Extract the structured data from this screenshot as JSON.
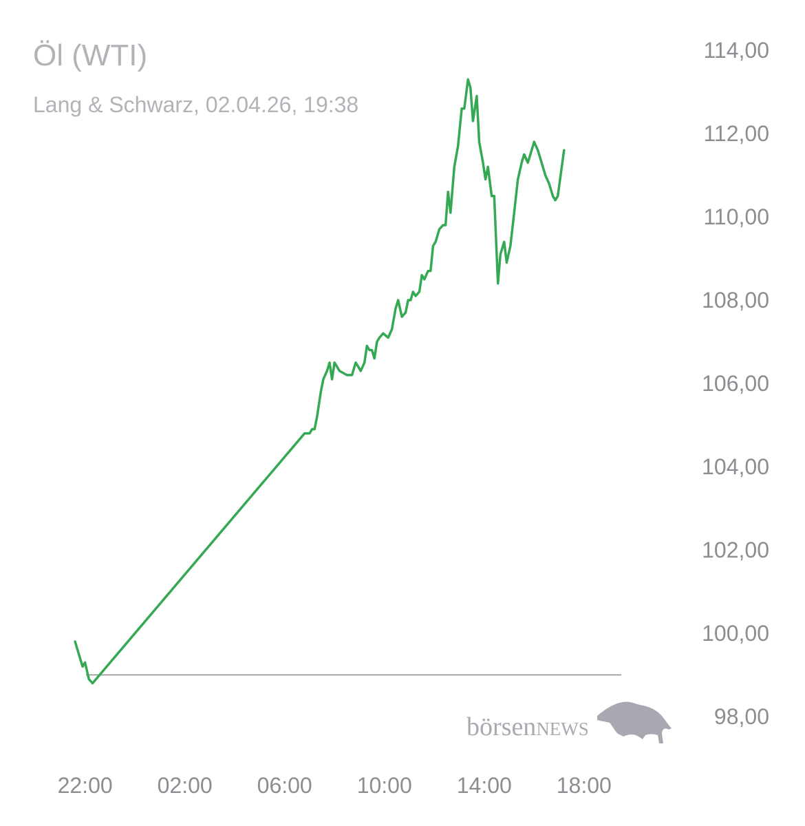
{
  "header": {
    "title": "Öl (WTI)",
    "subtitle": "Lang & Schwarz, 02.04.26, 19:38"
  },
  "logo": {
    "text_lower": "börsen",
    "text_upper": "NEWS",
    "icon": "bull-icon"
  },
  "colors": {
    "line": "#34a853",
    "reference_line": "#8a8a8a",
    "text": "#b4b1b8",
    "tick": "#8e8c92"
  },
  "chart_data": {
    "type": "line",
    "title": "Öl (WTI)",
    "subtitle": "Lang & Schwarz, 02.04.26, 19:38",
    "ylim": [
      98,
      114
    ],
    "xlim": [
      -0.1,
      21.55
    ],
    "grid": false,
    "y_axis_side": "right",
    "yticks": [
      {
        "value": 114,
        "label": "114,00"
      },
      {
        "value": 112,
        "label": "112,00"
      },
      {
        "value": 110,
        "label": "110,00"
      },
      {
        "value": 108,
        "label": "108,00"
      },
      {
        "value": 106,
        "label": "106,00"
      },
      {
        "value": 104,
        "label": "104,00"
      },
      {
        "value": 102,
        "label": "102,00"
      },
      {
        "value": 100,
        "label": "100,00"
      },
      {
        "value": 98,
        "label": "98,00"
      }
    ],
    "xticks": [
      {
        "value": 0,
        "label": "22:00"
      },
      {
        "value": 4,
        "label": "02:00"
      },
      {
        "value": 8,
        "label": "06:00"
      },
      {
        "value": 12,
        "label": "10:00"
      },
      {
        "value": 16,
        "label": "14:00"
      },
      {
        "value": 20,
        "label": "18:00"
      }
    ],
    "reference_value": 99.0,
    "series": [
      {
        "values": [
          [
            -0.4,
            99.8
          ],
          [
            -0.1,
            99.2
          ],
          [
            0.0,
            99.3
          ],
          [
            0.15,
            98.9
          ],
          [
            0.3,
            98.8
          ],
          [
            8.8,
            104.8
          ],
          [
            9.0,
            104.8
          ],
          [
            9.1,
            104.9
          ],
          [
            9.2,
            104.9
          ],
          [
            9.3,
            105.2
          ],
          [
            9.45,
            105.8
          ],
          [
            9.55,
            106.1
          ],
          [
            9.7,
            106.3
          ],
          [
            9.8,
            106.5
          ],
          [
            9.9,
            106.1
          ],
          [
            10.0,
            106.5
          ],
          [
            10.2,
            106.3
          ],
          [
            10.5,
            106.2
          ],
          [
            10.7,
            106.2
          ],
          [
            10.85,
            106.5
          ],
          [
            10.95,
            106.4
          ],
          [
            11.05,
            106.3
          ],
          [
            11.2,
            106.5
          ],
          [
            11.3,
            106.9
          ],
          [
            11.4,
            106.8
          ],
          [
            11.5,
            106.8
          ],
          [
            11.6,
            106.6
          ],
          [
            11.7,
            107.0
          ],
          [
            11.8,
            107.1
          ],
          [
            11.95,
            107.2
          ],
          [
            12.15,
            107.1
          ],
          [
            12.3,
            107.3
          ],
          [
            12.45,
            107.8
          ],
          [
            12.55,
            108.0
          ],
          [
            12.7,
            107.6
          ],
          [
            12.85,
            107.7
          ],
          [
            12.95,
            108.0
          ],
          [
            13.05,
            108.0
          ],
          [
            13.15,
            108.2
          ],
          [
            13.25,
            108.1
          ],
          [
            13.4,
            108.2
          ],
          [
            13.5,
            108.6
          ],
          [
            13.6,
            108.5
          ],
          [
            13.75,
            108.7
          ],
          [
            13.85,
            108.7
          ],
          [
            13.95,
            109.3
          ],
          [
            14.05,
            109.4
          ],
          [
            14.2,
            109.7
          ],
          [
            14.35,
            109.8
          ],
          [
            14.45,
            109.8
          ],
          [
            14.55,
            110.6
          ],
          [
            14.65,
            110.1
          ],
          [
            14.8,
            111.2
          ],
          [
            14.95,
            111.7
          ],
          [
            15.1,
            112.6
          ],
          [
            15.2,
            112.6
          ],
          [
            15.35,
            113.3
          ],
          [
            15.45,
            113.1
          ],
          [
            15.55,
            112.3
          ],
          [
            15.7,
            112.9
          ],
          [
            15.8,
            111.8
          ],
          [
            15.95,
            111.3
          ],
          [
            16.05,
            110.9
          ],
          [
            16.15,
            111.2
          ],
          [
            16.3,
            110.5
          ],
          [
            16.4,
            110.5
          ],
          [
            16.55,
            108.4
          ],
          [
            16.65,
            109.1
          ],
          [
            16.8,
            109.4
          ],
          [
            16.9,
            108.9
          ],
          [
            17.05,
            109.3
          ],
          [
            17.2,
            110.1
          ],
          [
            17.35,
            110.9
          ],
          [
            17.5,
            111.3
          ],
          [
            17.6,
            111.5
          ],
          [
            17.75,
            111.3
          ],
          [
            17.9,
            111.6
          ],
          [
            18.0,
            111.8
          ],
          [
            18.15,
            111.6
          ],
          [
            18.3,
            111.3
          ],
          [
            18.45,
            111.0
          ],
          [
            18.6,
            110.8
          ],
          [
            18.75,
            110.5
          ],
          [
            18.85,
            110.4
          ],
          [
            18.95,
            110.5
          ],
          [
            19.2,
            111.6
          ]
        ]
      }
    ]
  }
}
